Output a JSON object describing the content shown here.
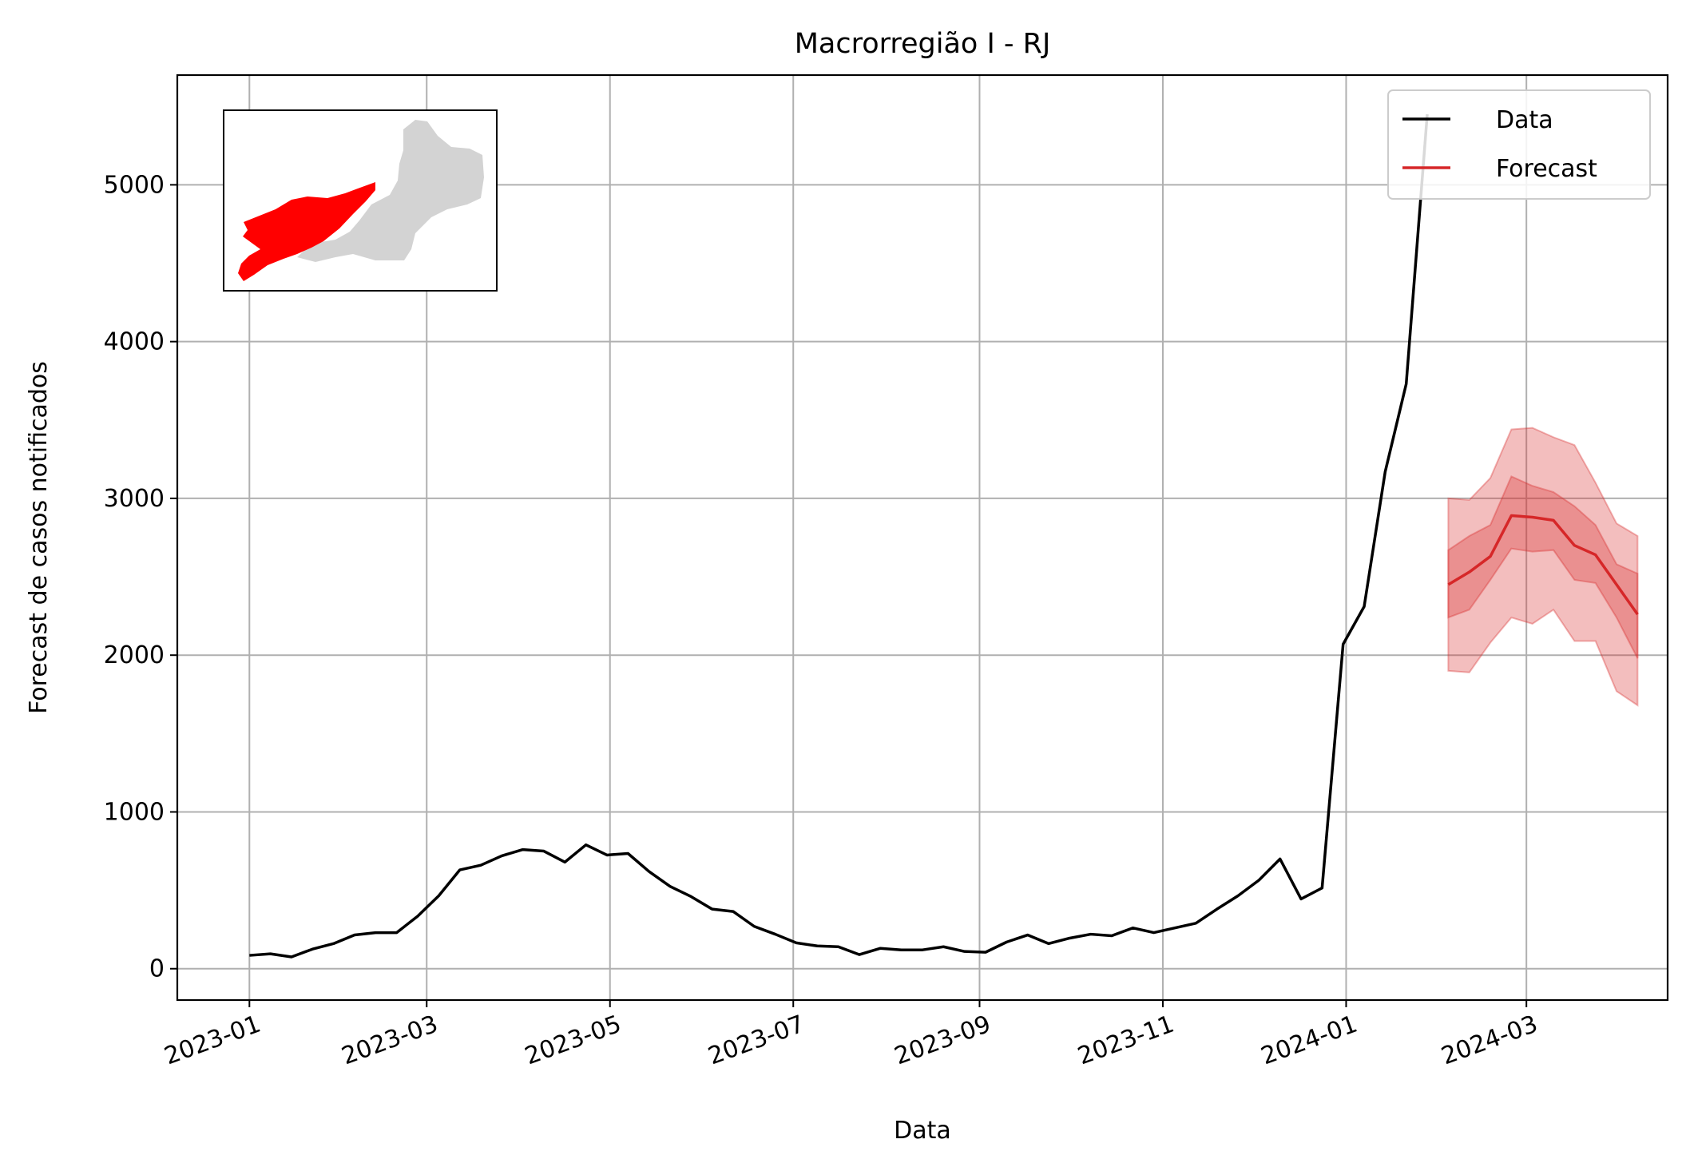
{
  "chart_data": {
    "type": "line",
    "title": "Macrorregião I - RJ",
    "xlabel": "Data",
    "ylabel": "Forecast de casos notificados",
    "x_tick_labels": [
      "2023-01",
      "2023-03",
      "2023-05",
      "2023-07",
      "2023-09",
      "2023-11",
      "2024-01",
      "2024-03"
    ],
    "y_ticks": [
      0,
      1000,
      2000,
      3000,
      4000,
      5000
    ],
    "xlim": [
      "2022-12-08",
      "2024-04-17"
    ],
    "ylim": [
      -200,
      5700
    ],
    "grid": true,
    "legend_position": "top-right",
    "series": [
      {
        "name": "Data",
        "color": "#000000",
        "x": [
          "2023-01-01",
          "2023-01-08",
          "2023-01-15",
          "2023-01-22",
          "2023-01-29",
          "2023-02-05",
          "2023-02-12",
          "2023-02-19",
          "2023-02-26",
          "2023-03-05",
          "2023-03-12",
          "2023-03-19",
          "2023-03-26",
          "2023-04-02",
          "2023-04-09",
          "2023-04-16",
          "2023-04-23",
          "2023-04-30",
          "2023-05-07",
          "2023-05-14",
          "2023-05-21",
          "2023-05-28",
          "2023-06-04",
          "2023-06-11",
          "2023-06-18",
          "2023-06-25",
          "2023-07-02",
          "2023-07-09",
          "2023-07-16",
          "2023-07-23",
          "2023-07-30",
          "2023-08-06",
          "2023-08-13",
          "2023-08-20",
          "2023-08-27",
          "2023-09-03",
          "2023-09-10",
          "2023-09-17",
          "2023-09-24",
          "2023-10-01",
          "2023-10-08",
          "2023-10-15",
          "2023-10-22",
          "2023-10-29",
          "2023-11-05",
          "2023-11-12",
          "2023-11-19",
          "2023-11-26",
          "2023-12-03",
          "2023-12-10",
          "2023-12-17",
          "2023-12-24",
          "2023-12-31",
          "2024-01-07",
          "2024-01-14",
          "2024-01-21",
          "2024-01-28"
        ],
        "y": [
          85,
          95,
          75,
          125,
          160,
          215,
          230,
          230,
          335,
          465,
          630,
          660,
          720,
          760,
          750,
          680,
          790,
          725,
          735,
          620,
          525,
          460,
          380,
          365,
          270,
          220,
          165,
          145,
          140,
          90,
          130,
          120,
          120,
          140,
          110,
          105,
          170,
          215,
          160,
          195,
          220,
          210,
          260,
          230,
          260,
          290,
          380,
          465,
          565,
          700,
          445,
          515,
          2070,
          2310,
          3170,
          3730,
          5450
        ]
      },
      {
        "name": "Forecast",
        "color": "#d62728",
        "x": [
          "2024-02-04",
          "2024-02-11",
          "2024-02-18",
          "2024-02-25",
          "2024-03-03",
          "2024-03-10",
          "2024-03-17",
          "2024-03-24",
          "2024-03-31",
          "2024-04-07"
        ],
        "y": [
          2450,
          2530,
          2630,
          2890,
          2880,
          2860,
          2700,
          2640,
          2450,
          2260
        ],
        "band_inner_low": [
          2240,
          2290,
          2480,
          2680,
          2660,
          2670,
          2480,
          2460,
          2240,
          1980
        ],
        "band_inner_high": [
          2670,
          2760,
          2830,
          3140,
          3080,
          3040,
          2950,
          2830,
          2580,
          2520
        ],
        "band_outer_low": [
          1900,
          1890,
          2080,
          2240,
          2200,
          2290,
          2090,
          2090,
          1770,
          1680
        ],
        "band_outer_high": [
          3000,
          2990,
          3130,
          3440,
          3450,
          3390,
          3340,
          3100,
          2840,
          2760
        ]
      }
    ]
  },
  "map_inset": {
    "highlight_color": "#ff0000",
    "base_color": "#d3d3d3"
  }
}
